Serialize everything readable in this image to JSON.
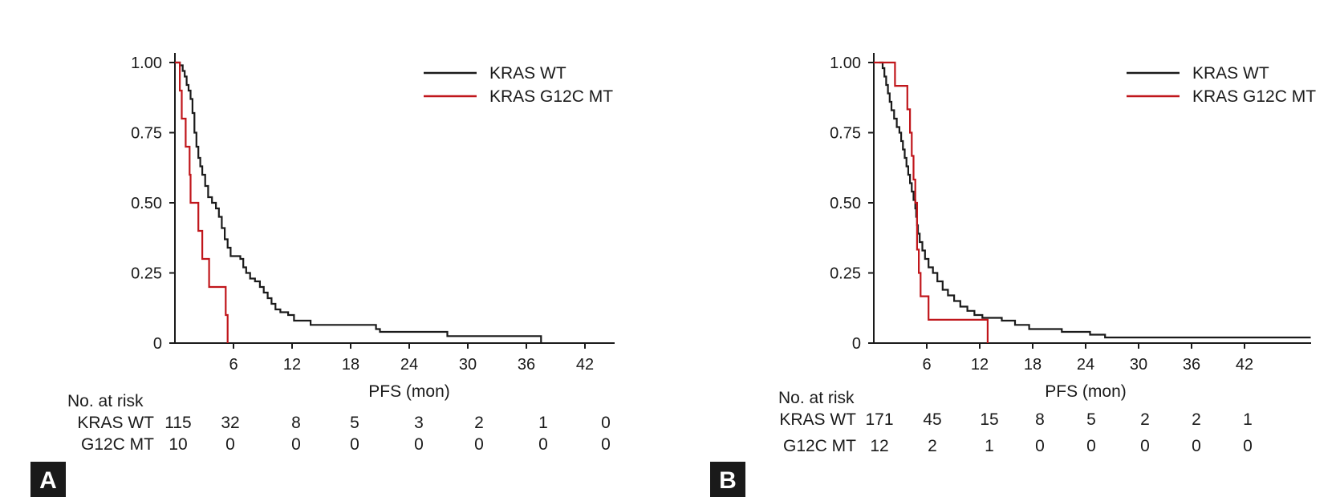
{
  "chart_data": [
    {
      "type": "line",
      "panel_label": "A",
      "xlabel": "PFS (mon)",
      "ylabel": "",
      "xlim": [
        0,
        43
      ],
      "ylim": [
        0,
        1
      ],
      "x_ticks": [
        6,
        12,
        18,
        24,
        30,
        36,
        42
      ],
      "y_ticks": [
        0,
        0.25,
        0.5,
        0.75,
        1.0
      ],
      "y_tick_labels": [
        "0",
        "0.25",
        "0.50",
        "0.75",
        "1.00"
      ],
      "legend_position": "top-right",
      "series": [
        {
          "name": "KRAS WT",
          "color": "#1a1a1a",
          "steps": [
            [
              0,
              1.0
            ],
            [
              0.5,
              0.99
            ],
            [
              0.8,
              0.97
            ],
            [
              1.0,
              0.95
            ],
            [
              1.2,
              0.92
            ],
            [
              1.4,
              0.9
            ],
            [
              1.6,
              0.87
            ],
            [
              1.8,
              0.82
            ],
            [
              2.0,
              0.75
            ],
            [
              2.2,
              0.7
            ],
            [
              2.4,
              0.66
            ],
            [
              2.6,
              0.63
            ],
            [
              2.8,
              0.6
            ],
            [
              3.1,
              0.56
            ],
            [
              3.4,
              0.52
            ],
            [
              3.8,
              0.5
            ],
            [
              4.2,
              0.48
            ],
            [
              4.5,
              0.45
            ],
            [
              4.8,
              0.41
            ],
            [
              5.1,
              0.37
            ],
            [
              5.4,
              0.34
            ],
            [
              5.7,
              0.31
            ],
            [
              6.7,
              0.3
            ],
            [
              7.0,
              0.27
            ],
            [
              7.3,
              0.25
            ],
            [
              7.7,
              0.23
            ],
            [
              8.2,
              0.22
            ],
            [
              8.7,
              0.2
            ],
            [
              9.1,
              0.18
            ],
            [
              9.5,
              0.16
            ],
            [
              9.9,
              0.14
            ],
            [
              10.3,
              0.12
            ],
            [
              10.8,
              0.11
            ],
            [
              11.6,
              0.1
            ],
            [
              12.2,
              0.08
            ],
            [
              13.9,
              0.065
            ],
            [
              20.6,
              0.05
            ],
            [
              21.0,
              0.04
            ],
            [
              27.9,
              0.025
            ],
            [
              37.5,
              0.0
            ]
          ],
          "end_x": 37.5
        },
        {
          "name": "KRAS G12C MT",
          "color": "#c0161b",
          "steps": [
            [
              0,
              1.0
            ],
            [
              0.5,
              0.9
            ],
            [
              0.7,
              0.8
            ],
            [
              1.1,
              0.7
            ],
            [
              1.5,
              0.6
            ],
            [
              1.6,
              0.5
            ],
            [
              2.4,
              0.4
            ],
            [
              2.8,
              0.3
            ],
            [
              3.5,
              0.2
            ],
            [
              5.2,
              0.1
            ],
            [
              5.4,
              0.0
            ]
          ],
          "end_x": 5.4
        }
      ],
      "risk_table": {
        "header": "No. at risk",
        "times": [
          0,
          6,
          12,
          18,
          24,
          30,
          36,
          42
        ],
        "rows": [
          {
            "label": "KRAS WT",
            "values": [
              "115",
              "32",
              "8",
              "5",
              "3",
              "2",
              "1",
              "0"
            ]
          },
          {
            "label": "G12C MT",
            "values": [
              "10",
              "0",
              "0",
              "0",
              "0",
              "0",
              "0",
              "0"
            ]
          }
        ]
      }
    },
    {
      "type": "line",
      "panel_label": "B",
      "xlabel": "PFS (mon)",
      "ylabel": "",
      "xlim": [
        0,
        50
      ],
      "ylim": [
        0,
        1
      ],
      "x_ticks": [
        6,
        12,
        18,
        24,
        30,
        36,
        42
      ],
      "y_ticks": [
        0,
        0.25,
        0.5,
        0.75,
        1.0
      ],
      "y_tick_labels": [
        "0",
        "0.25",
        "0.50",
        "0.75",
        "1.00"
      ],
      "legend_position": "top-right",
      "series": [
        {
          "name": "KRAS WT",
          "color": "#1a1a1a",
          "steps": [
            [
              0.6,
              1.0
            ],
            [
              1.0,
              0.98
            ],
            [
              1.2,
              0.95
            ],
            [
              1.4,
              0.92
            ],
            [
              1.6,
              0.89
            ],
            [
              1.8,
              0.86
            ],
            [
              2.0,
              0.83
            ],
            [
              2.3,
              0.8
            ],
            [
              2.6,
              0.77
            ],
            [
              2.9,
              0.75
            ],
            [
              3.1,
              0.72
            ],
            [
              3.3,
              0.69
            ],
            [
              3.5,
              0.66
            ],
            [
              3.7,
              0.63
            ],
            [
              3.9,
              0.6
            ],
            [
              4.1,
              0.57
            ],
            [
              4.3,
              0.54
            ],
            [
              4.5,
              0.51
            ],
            [
              4.7,
              0.48
            ],
            [
              4.8,
              0.45
            ],
            [
              4.9,
              0.42
            ],
            [
              5.0,
              0.39
            ],
            [
              5.2,
              0.36
            ],
            [
              5.5,
              0.33
            ],
            [
              5.8,
              0.3
            ],
            [
              6.2,
              0.27
            ],
            [
              6.7,
              0.25
            ],
            [
              7.2,
              0.22
            ],
            [
              7.8,
              0.19
            ],
            [
              8.4,
              0.17
            ],
            [
              9.1,
              0.15
            ],
            [
              9.8,
              0.13
            ],
            [
              10.6,
              0.115
            ],
            [
              11.4,
              0.1
            ],
            [
              12.3,
              0.09
            ],
            [
              14.5,
              0.08
            ],
            [
              16.0,
              0.065
            ],
            [
              17.6,
              0.05
            ],
            [
              21.3,
              0.04
            ],
            [
              24.5,
              0.03
            ],
            [
              26.2,
              0.02
            ]
          ],
          "end_x": 49.5
        },
        {
          "name": "KRAS G12C MT",
          "color": "#c0161b",
          "steps": [
            [
              0,
              1.0
            ],
            [
              2.4,
              0.917
            ],
            [
              3.8,
              0.833
            ],
            [
              4.1,
              0.75
            ],
            [
              4.3,
              0.667
            ],
            [
              4.5,
              0.583
            ],
            [
              4.7,
              0.5
            ],
            [
              4.9,
              0.333
            ],
            [
              5.1,
              0.25
            ],
            [
              5.3,
              0.167
            ],
            [
              6.2,
              0.083
            ],
            [
              12.9,
              0.0
            ]
          ],
          "end_x": 12.9
        }
      ],
      "risk_table": {
        "header": "No. at risk",
        "times": [
          0,
          6,
          12,
          18,
          24,
          30,
          36,
          42
        ],
        "rows": [
          {
            "label": "KRAS WT",
            "values": [
              "171",
              "45",
              "15",
              "8",
              "5",
              "2",
              "2",
              "1"
            ]
          },
          {
            "label": "G12C MT",
            "values": [
              "12",
              "2",
              "1",
              "0",
              "0",
              "0",
              "0",
              "0"
            ]
          }
        ]
      }
    }
  ]
}
